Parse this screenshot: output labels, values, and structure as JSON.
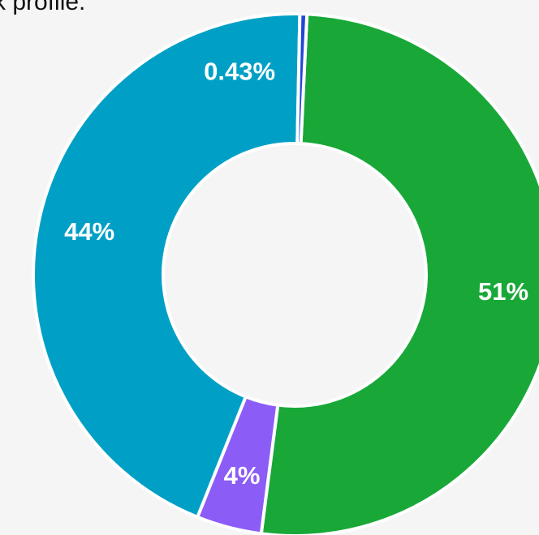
{
  "chart_data": {
    "type": "donut",
    "title": "k profile.",
    "values": [
      51,
      4,
      44,
      0.43
    ],
    "value_labels": [
      "51%",
      "4%",
      "44%",
      "0.43%"
    ],
    "colors": [
      "#19a838",
      "#8b5cf6",
      "#00a0c6",
      "#2146d6"
    ]
  }
}
